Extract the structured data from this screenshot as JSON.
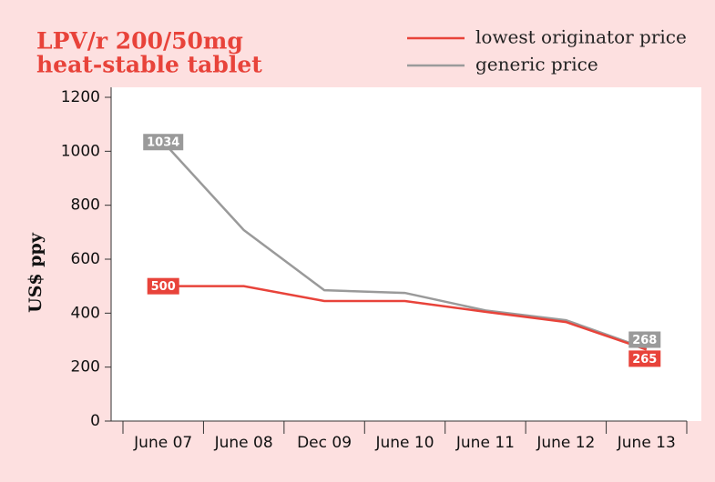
{
  "chart_data": {
    "type": "line",
    "title": [
      "LPV/r 200/50mg",
      "heat-stable tablet"
    ],
    "ylabel": "US$ ppy",
    "categories": [
      "June 07",
      "June 08",
      "Dec 09",
      "June 10",
      "June 11",
      "June 12",
      "June 13"
    ],
    "series": [
      {
        "name": "lowest originator price",
        "color": "#e8433a",
        "values": [
          500,
          500,
          445,
          445,
          405,
          367,
          265
        ],
        "value_labels": [
          "500",
          null,
          null,
          null,
          null,
          null,
          "265"
        ]
      },
      {
        "name": "generic price",
        "color": "#9a9a9a",
        "values": [
          1034,
          708,
          485,
          475,
          410,
          374,
          268
        ],
        "value_labels": [
          "1034",
          null,
          null,
          null,
          null,
          null,
          "268"
        ]
      }
    ],
    "ylim": [
      0,
      1200
    ],
    "yticks": [
      0,
      200,
      400,
      600,
      800,
      1000,
      1200
    ]
  }
}
